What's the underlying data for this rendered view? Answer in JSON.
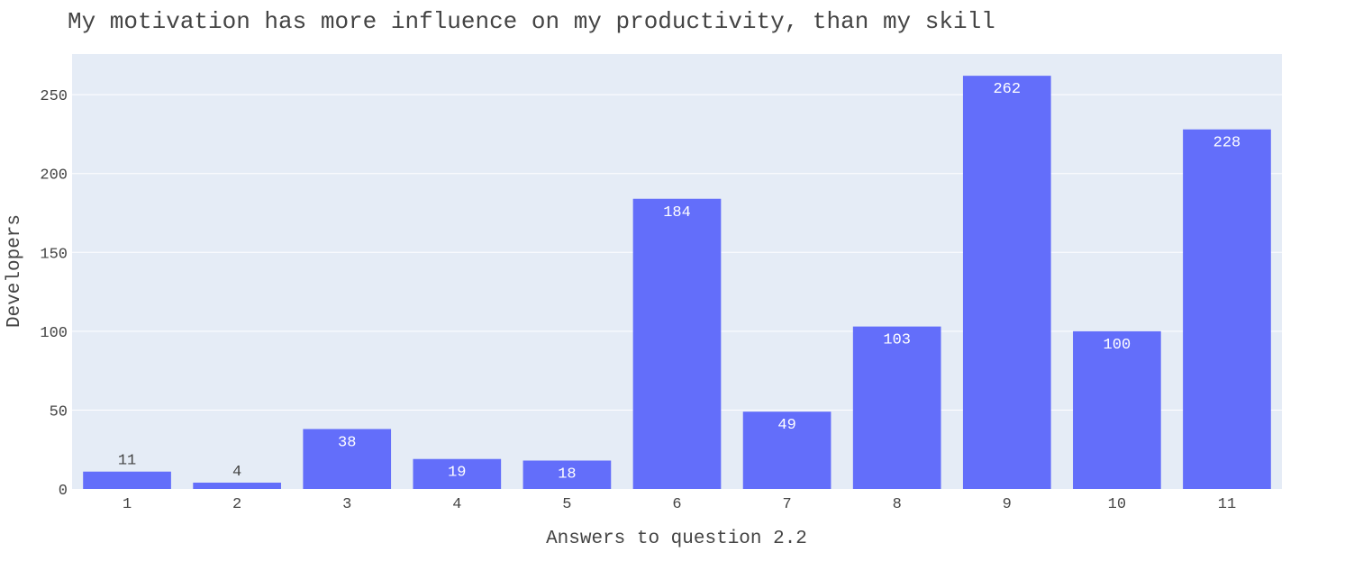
{
  "chart_data": {
    "type": "bar",
    "title": "My motivation has more influence on my productivity, than my skill",
    "xlabel": "Answers to question 2.2",
    "ylabel": "Developers",
    "categories": [
      "1",
      "2",
      "3",
      "4",
      "5",
      "6",
      "7",
      "8",
      "9",
      "10",
      "11"
    ],
    "values": [
      11,
      4,
      38,
      19,
      18,
      184,
      49,
      103,
      262,
      100,
      228
    ],
    "ylim": [
      0,
      275.79
    ],
    "yticks": [
      0,
      50,
      100,
      150,
      200,
      250
    ],
    "grid": true,
    "legend": "none",
    "colors": {
      "bar": "#636efa",
      "plot_background": "#e5ecf6",
      "gridline": "#ffffff",
      "text": "#444444",
      "label_inside": "#ffffff"
    }
  }
}
